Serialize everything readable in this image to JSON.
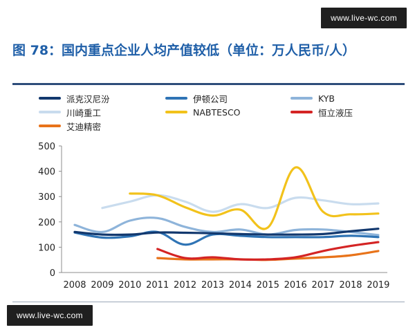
{
  "watermark": "www.live-wc.com",
  "title": "图 78：国内重点企业人均产值较低（单位：万人民币/人）",
  "colors": {
    "title": "#1f5fa8"
  },
  "chart_data": {
    "type": "line",
    "x": [
      2008,
      2009,
      2010,
      2011,
      2012,
      2013,
      2014,
      2015,
      2016,
      2017,
      2018,
      2019
    ],
    "ylim": [
      0,
      500
    ],
    "yticks": [
      0,
      100,
      200,
      300,
      400,
      500
    ],
    "grid": false,
    "legend_position": "top",
    "series": [
      {
        "name": "派克汉尼汾",
        "color": "#12386e",
        "values": [
          160,
          150,
          150,
          158,
          157,
          155,
          152,
          150,
          150,
          152,
          163,
          173
        ]
      },
      {
        "name": "伊顿公司",
        "color": "#2f74b5",
        "values": [
          158,
          138,
          143,
          160,
          110,
          150,
          145,
          140,
          140,
          140,
          145,
          140
        ]
      },
      {
        "name": "KYB",
        "color": "#8eb4da",
        "values": [
          188,
          160,
          205,
          215,
          180,
          160,
          170,
          150,
          168,
          170,
          160,
          148
        ]
      },
      {
        "name": "川崎重工",
        "color": "#c9dcee",
        "values": [
          null,
          255,
          280,
          305,
          280,
          240,
          270,
          255,
          295,
          285,
          270,
          273
        ]
      },
      {
        "name": "NABTESCO",
        "color": "#f2c21b",
        "values": [
          null,
          null,
          312,
          305,
          258,
          225,
          248,
          178,
          415,
          240,
          230,
          233
        ]
      },
      {
        "name": "恒立液压",
        "color": "#d42424",
        "values": [
          null,
          null,
          null,
          93,
          57,
          60,
          52,
          52,
          60,
          85,
          105,
          120
        ]
      },
      {
        "name": "艾迪精密",
        "color": "#e8731a",
        "values": [
          null,
          null,
          null,
          57,
          52,
          52,
          52,
          50,
          55,
          60,
          68,
          85
        ]
      }
    ]
  }
}
